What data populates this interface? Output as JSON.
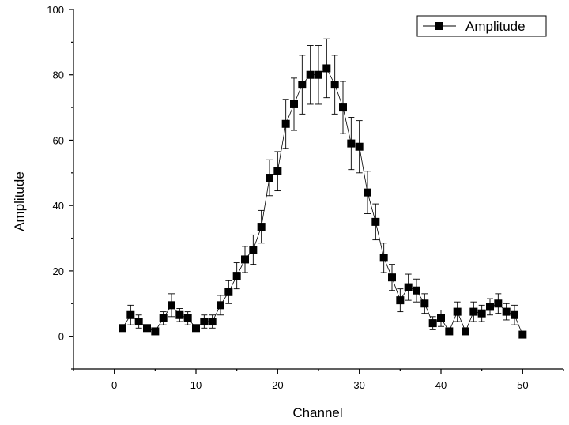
{
  "chart_data": {
    "type": "scatter",
    "xlabel": "Channel",
    "ylabel": "Amplitude",
    "xlim": [
      -5,
      55
    ],
    "ylim": [
      -10,
      100
    ],
    "xticks": [
      0,
      10,
      20,
      30,
      40,
      50
    ],
    "yticks": [
      0,
      20,
      40,
      60,
      80,
      100
    ],
    "grid": false,
    "legend_position": "top-right",
    "marker": "filled-square",
    "connect_points": true,
    "series": [
      {
        "name": "Amplitude",
        "color": "#000000",
        "x": [
          1,
          2,
          3,
          4,
          5,
          6,
          7,
          8,
          9,
          10,
          11,
          12,
          13,
          14,
          15,
          16,
          17,
          18,
          19,
          20,
          21,
          22,
          23,
          24,
          25,
          26,
          27,
          28,
          29,
          30,
          31,
          32,
          33,
          34,
          35,
          36,
          37,
          38,
          39,
          40,
          41,
          42,
          43,
          44,
          45,
          46,
          47,
          48,
          49,
          50
        ],
        "y": [
          2.5,
          6.5,
          4.5,
          2.5,
          1.5,
          5.5,
          9.5,
          6.5,
          5.5,
          2.5,
          4.5,
          4.5,
          9.5,
          13.5,
          18.5,
          23.5,
          26.5,
          33.5,
          48.5,
          50.5,
          65,
          71,
          77,
          80,
          80,
          82,
          77,
          70,
          59,
          58,
          44,
          35,
          24,
          18,
          11,
          15,
          14,
          10,
          4,
          5.5,
          1.5,
          7.5,
          1.5,
          7.5,
          7,
          9,
          10,
          7.5,
          6.5,
          0.5
        ],
        "error": [
          1,
          3,
          2,
          1,
          1,
          2,
          3.5,
          2,
          2,
          1,
          2,
          2,
          3,
          3.5,
          4,
          4,
          4.5,
          5,
          5.5,
          6,
          7.5,
          8,
          9,
          9,
          9,
          9,
          9,
          8,
          8,
          8,
          6.5,
          5.5,
          4.5,
          4,
          3.5,
          4,
          3.5,
          3,
          2,
          2.5,
          1,
          3,
          1,
          3,
          2.5,
          2.5,
          3,
          2.5,
          3,
          0.5
        ]
      }
    ]
  }
}
